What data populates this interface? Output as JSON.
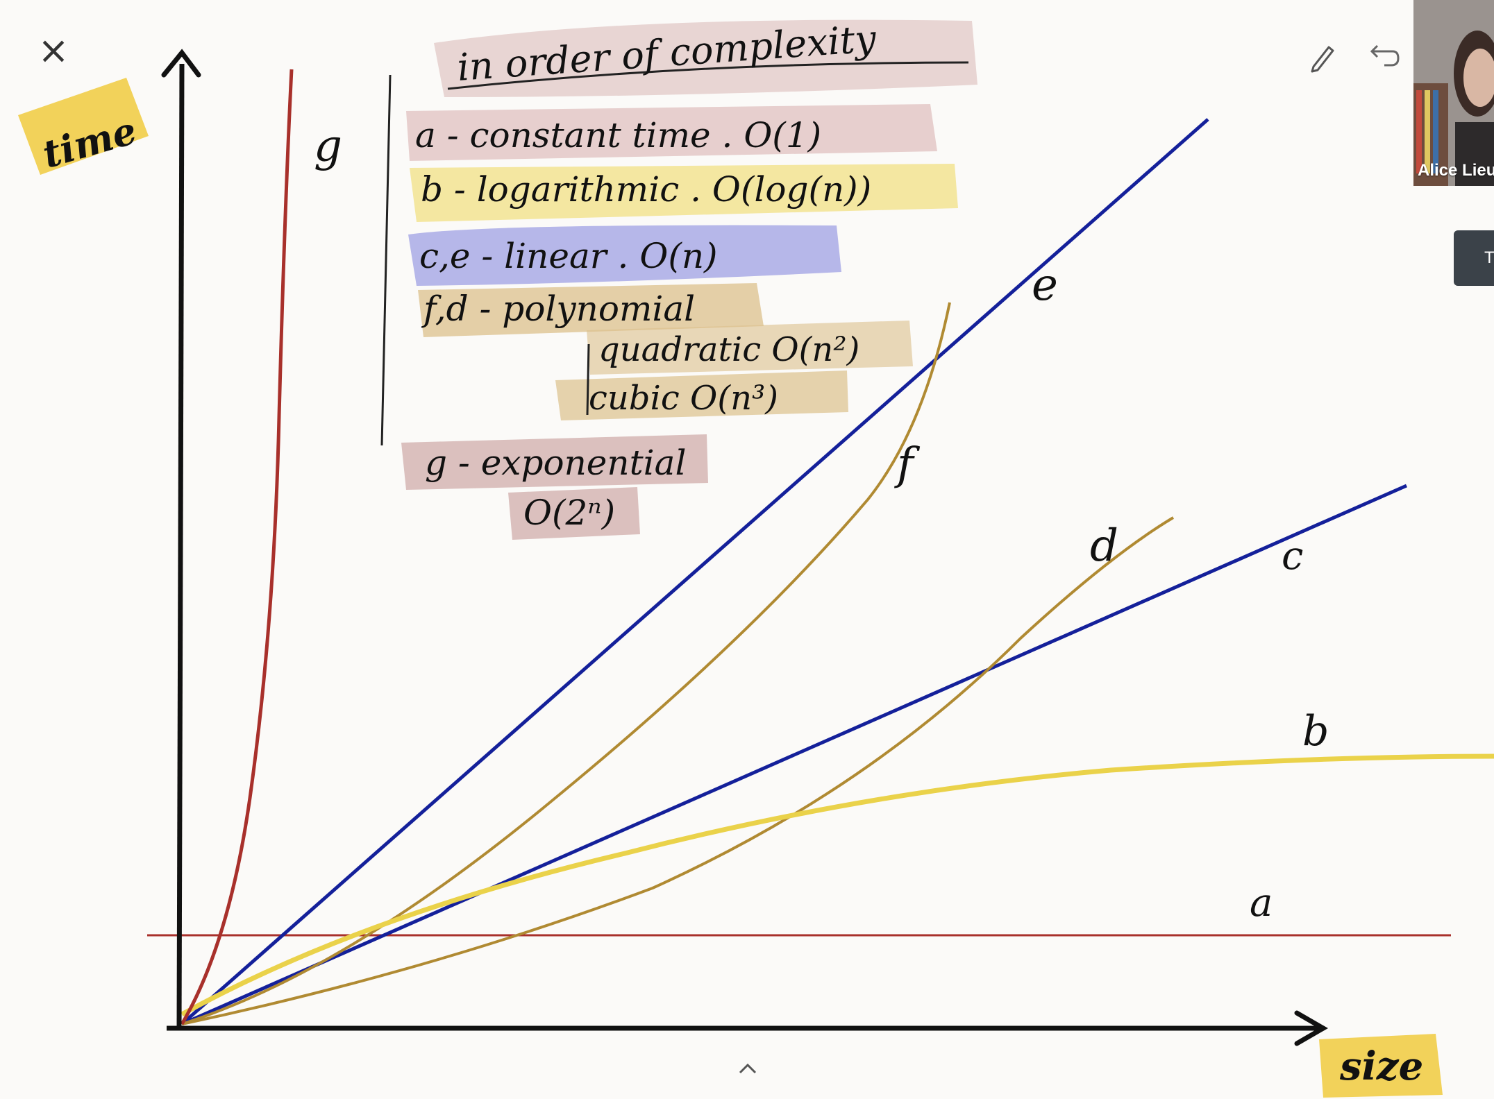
{
  "colors": {
    "axis": "#111111",
    "red_curve": "#a8302b",
    "blue_line": "#14209a",
    "polynomial_curve": "#b08a32",
    "log_curve": "#ead24a",
    "time_label_bg": "#f2d25a",
    "size_label_bg": "#f2d25a",
    "title_highlight": "#d8b6b4",
    "constant_highlight": "#dbb9b7",
    "log_highlight": "#f1e084",
    "linear_highlight": "#a9aae6",
    "polynomial_highlight": "#dcc08c",
    "exponential_highlight": "#c79a97"
  },
  "ui": {
    "close_icon": "close-icon",
    "close_glyph": "×",
    "pen_icon": "pen-icon",
    "undo_icon": "undo-icon",
    "expand_icon": "chevron-up-icon",
    "participant_name": "Alice Lieut",
    "side_tab_text": "T"
  },
  "axes": {
    "y_label": "time",
    "x_label": "size"
  },
  "legend": {
    "title": "in order of complexity",
    "rows": [
      {
        "text": "a -  constant time  .  O(1)"
      },
      {
        "text": "b -  logarithmic  .  O(log(n))"
      },
      {
        "text": "c,e -  linear  .  O(n)"
      },
      {
        "text": "f,d -  polynomial"
      },
      {
        "text": "quadratic   O(n²)"
      },
      {
        "text": "cubic   O(n³)"
      },
      {
        "text": "g -  exponential"
      },
      {
        "text": "O(2ⁿ)"
      }
    ]
  },
  "curve_labels": {
    "g": "g",
    "e": "e",
    "f": "f",
    "d": "d",
    "c": "c",
    "b": "b",
    "a": "a"
  }
}
